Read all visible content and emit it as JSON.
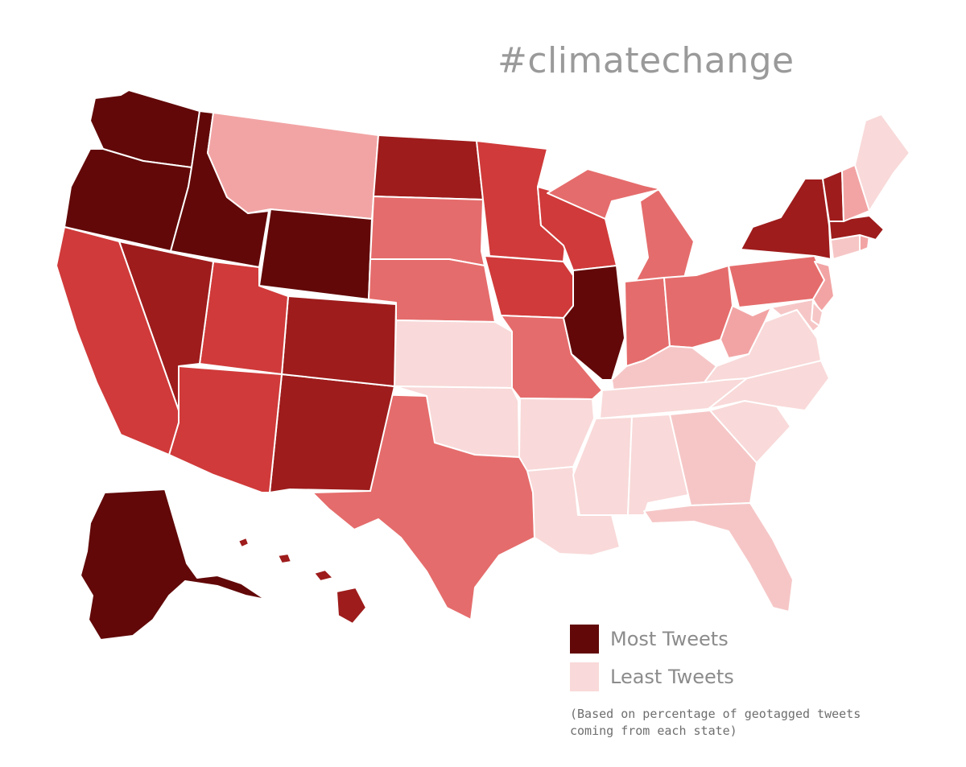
{
  "title": "#climatechange",
  "legend": {
    "most_label": "Most Tweets",
    "least_label": "Least Tweets",
    "most_color": "#620808",
    "least_color": "#f9d9d9",
    "note": "(Based on percentage of geotagged tweets coming from each state)"
  },
  "colors": {
    "c5": "#620808",
    "c4": "#9e1c1c",
    "c3": "#d03a3a",
    "c2": "#e56c6c",
    "c1": "#f2a4a4",
    "c0": "#f9d9d9",
    "c0b": "#f6c6c6"
  },
  "states": [
    {
      "id": "WA",
      "level": "c5"
    },
    {
      "id": "OR",
      "level": "c5"
    },
    {
      "id": "ID",
      "level": "c5"
    },
    {
      "id": "WY",
      "level": "c5"
    },
    {
      "id": "IL",
      "level": "c5"
    },
    {
      "id": "AK",
      "level": "c5"
    },
    {
      "id": "ND",
      "level": "c4"
    },
    {
      "id": "NV",
      "level": "c4"
    },
    {
      "id": "CO",
      "level": "c4"
    },
    {
      "id": "NM",
      "level": "c4"
    },
    {
      "id": "NY",
      "level": "c4"
    },
    {
      "id": "VT",
      "level": "c4"
    },
    {
      "id": "MA",
      "level": "c4"
    },
    {
      "id": "HI",
      "level": "c4"
    },
    {
      "id": "CA",
      "level": "c3"
    },
    {
      "id": "UT",
      "level": "c3"
    },
    {
      "id": "AZ",
      "level": "c3"
    },
    {
      "id": "MN",
      "level": "c3"
    },
    {
      "id": "WI",
      "level": "c3"
    },
    {
      "id": "IA",
      "level": "c3"
    },
    {
      "id": "SD",
      "level": "c2"
    },
    {
      "id": "NE",
      "level": "c2"
    },
    {
      "id": "TX",
      "level": "c2"
    },
    {
      "id": "MO",
      "level": "c2"
    },
    {
      "id": "MI",
      "level": "c2"
    },
    {
      "id": "IN",
      "level": "c2"
    },
    {
      "id": "OH",
      "level": "c2"
    },
    {
      "id": "PA",
      "level": "c2"
    },
    {
      "id": "MT",
      "level": "c1"
    },
    {
      "id": "WV",
      "level": "c1"
    },
    {
      "id": "NH",
      "level": "c1"
    },
    {
      "id": "NJ",
      "level": "c1"
    },
    {
      "id": "RI",
      "level": "c1"
    },
    {
      "id": "KS",
      "level": "c0"
    },
    {
      "id": "OK",
      "level": "c0"
    },
    {
      "id": "AR",
      "level": "c0"
    },
    {
      "id": "LA",
      "level": "c0"
    },
    {
      "id": "MS",
      "level": "c0"
    },
    {
      "id": "AL",
      "level": "c0"
    },
    {
      "id": "TN",
      "level": "c0"
    },
    {
      "id": "KY",
      "level": "c0b"
    },
    {
      "id": "VA",
      "level": "c0"
    },
    {
      "id": "NC",
      "level": "c0"
    },
    {
      "id": "SC",
      "level": "c0"
    },
    {
      "id": "GA",
      "level": "c0b"
    },
    {
      "id": "FL",
      "level": "c0b"
    },
    {
      "id": "ME",
      "level": "c0"
    },
    {
      "id": "CT",
      "level": "c0b"
    },
    {
      "id": "MD",
      "level": "c0b"
    },
    {
      "id": "DE",
      "level": "c0b"
    }
  ]
}
